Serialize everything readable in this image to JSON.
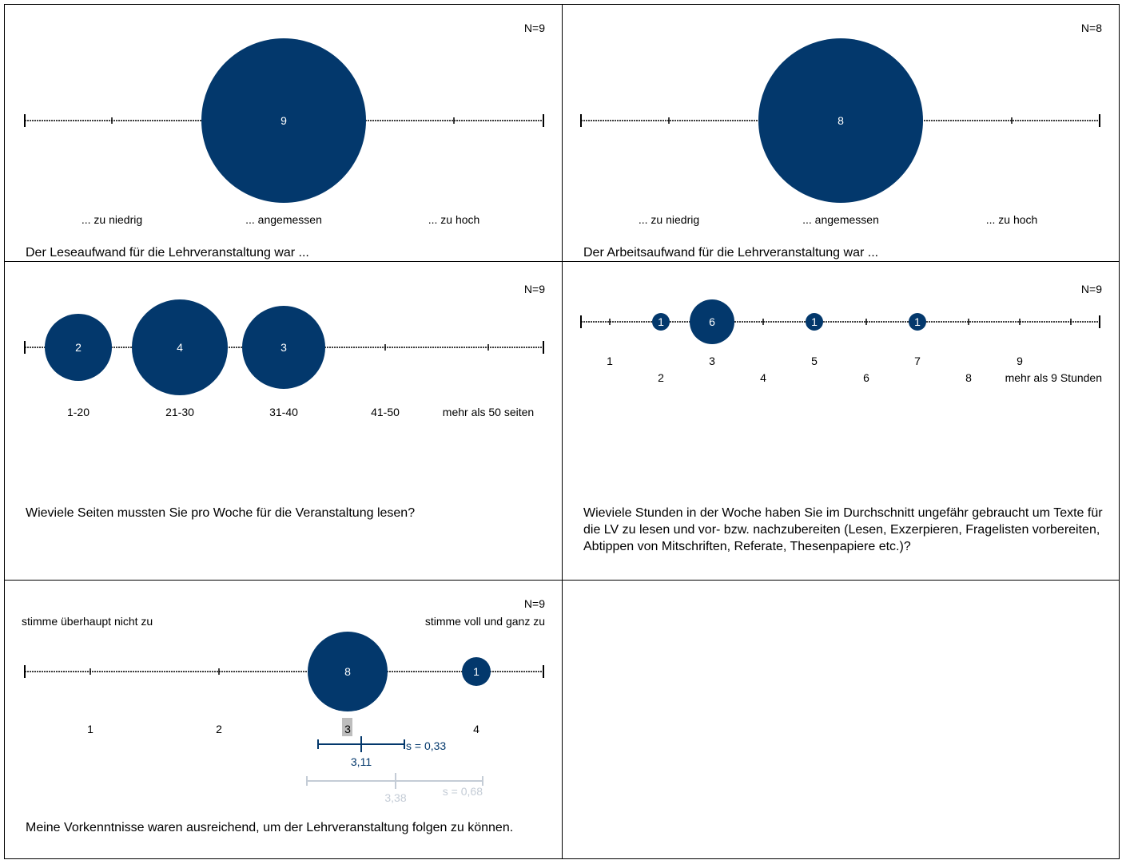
{
  "panels": [
    {
      "id": "p1",
      "n_label": "N=9",
      "question": "Der Leseaufwand für die Lehrveranstaltung war ...",
      "chart_data": {
        "type": "bubble-scale",
        "categories": [
          "... zu niedrig",
          "",
          "... angemessen",
          "",
          "... zu hoch"
        ],
        "values": [
          0,
          0,
          9,
          0,
          0
        ]
      }
    },
    {
      "id": "p2",
      "n_label": "N=8",
      "question": "Der Arbeitsaufwand für die Lehrveranstaltung war ...",
      "chart_data": {
        "type": "bubble-scale",
        "categories": [
          "... zu niedrig",
          "",
          "... angemessen",
          "",
          "... zu hoch"
        ],
        "values": [
          0,
          0,
          8,
          0,
          0
        ]
      }
    },
    {
      "id": "p3",
      "n_label": "N=9",
      "question": "Wieviele Seiten mussten Sie pro Woche für die Veranstaltung lesen?",
      "chart_data": {
        "type": "bubble-scale",
        "categories": [
          "1-20",
          "21-30",
          "31-40",
          "41-50",
          "mehr als 50 seiten"
        ],
        "values": [
          2,
          4,
          3,
          0,
          0
        ]
      }
    },
    {
      "id": "p4",
      "n_label": "N=9",
      "question": "Wieviele Stunden in der Woche haben Sie im Durchschnitt ungefähr gebraucht um Texte für die LV zu lesen und vor- bzw. nachzubereiten (Lesen, Exzerpieren, Fragelisten vorbereiten, Abtippen von Mitschriften, Referate, Thesenpapiere etc.)?",
      "chart_data": {
        "type": "bubble-scale",
        "categories": [
          "1",
          "2",
          "3",
          "4",
          "5",
          "6",
          "7",
          "8",
          "9",
          "mehr als 9 Stunden"
        ],
        "values": [
          0,
          1,
          6,
          0,
          1,
          0,
          1,
          0,
          0,
          0
        ]
      }
    },
    {
      "id": "p5",
      "n_label": "N=9",
      "left_pole": "stimme überhaupt nicht zu",
      "right_pole": "stimme voll und ganz zu",
      "question": "Meine Vorkenntnisse waren ausreichend, um der Lehrveranstaltung folgen zu können.",
      "chart_data": {
        "type": "bubble-scale",
        "categories": [
          "1",
          "2",
          "3",
          "4"
        ],
        "values": [
          0,
          0,
          8,
          1
        ],
        "median": 3,
        "mean": {
          "value": 3.11,
          "label": "3,11",
          "s": 0.33,
          "s_label": "s = 0,33"
        },
        "comparison": {
          "value": 3.38,
          "label": "3,38",
          "s": 0.68,
          "s_label": "s = 0,68"
        }
      }
    }
  ],
  "colors": {
    "bubble": "#03386c",
    "comparison": "#c4ccd6",
    "median_box": "#bdbdbd"
  }
}
